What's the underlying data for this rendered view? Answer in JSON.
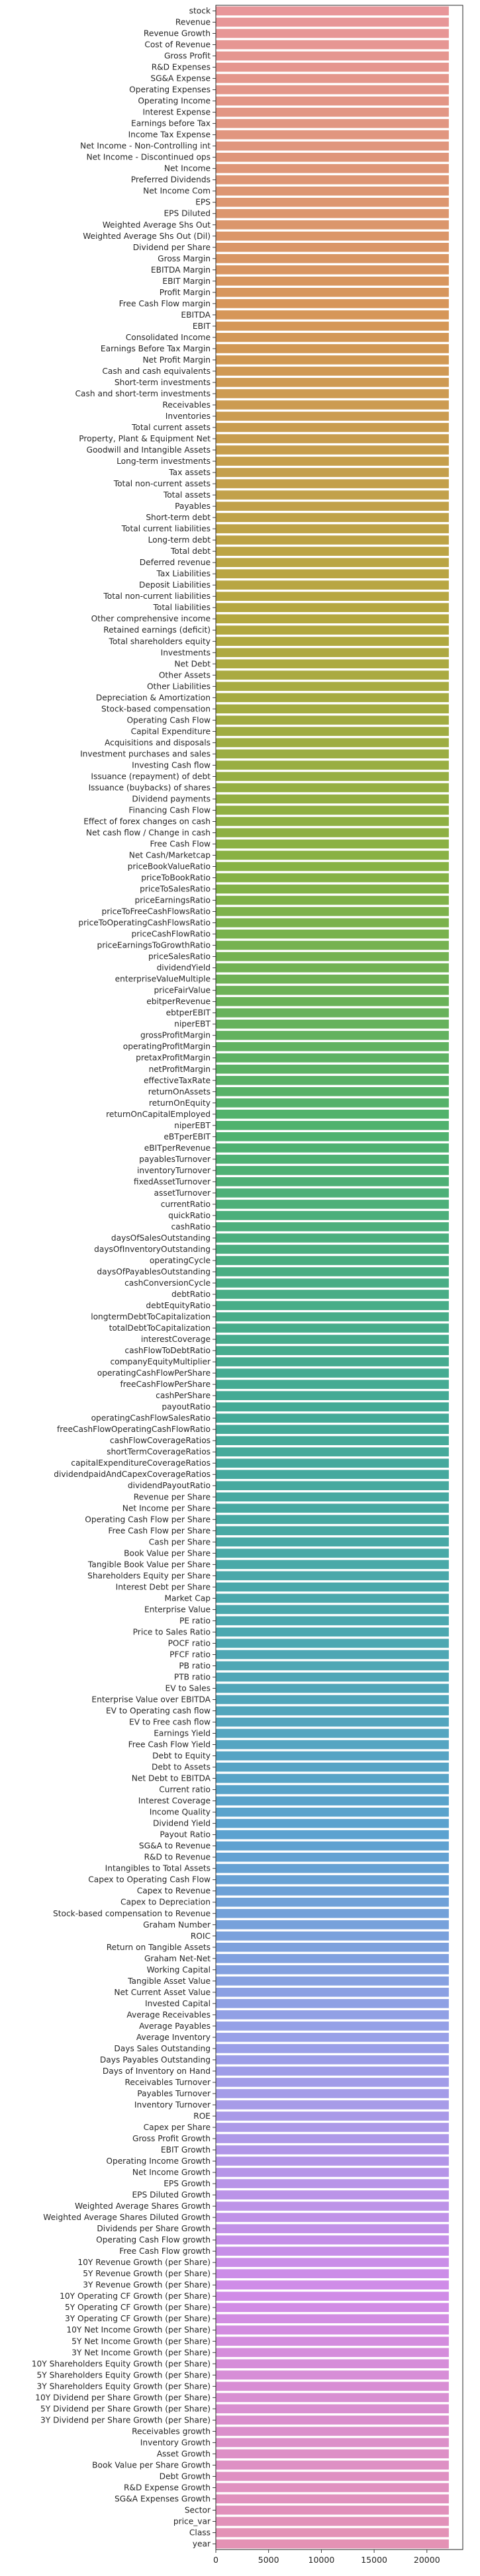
{
  "chart_data": {
    "type": "bar",
    "orientation": "horizontal",
    "title": "",
    "xlabel": "",
    "ylabel": "",
    "xlim": [
      0,
      23400
    ],
    "xticks": [
      0,
      5000,
      10000,
      15000,
      20000
    ],
    "xtick_labels": [
      "0",
      "5000",
      "10000",
      "15000",
      "20000"
    ],
    "grid": false,
    "legend": "none",
    "categories": [
      "stock",
      "Revenue",
      "Revenue Growth",
      "Cost of Revenue",
      "Gross Profit",
      "R&D Expenses",
      "SG&A Expense",
      "Operating Expenses",
      "Operating Income",
      "Interest Expense",
      "Earnings before Tax",
      "Income Tax Expense",
      "Net Income - Non-Controlling int",
      "Net Income - Discontinued ops",
      "Net Income",
      "Preferred Dividends",
      "Net Income Com",
      "EPS",
      "EPS Diluted",
      "Weighted Average Shs Out",
      "Weighted Average Shs Out (Dil)",
      "Dividend per Share",
      "Gross Margin",
      "EBITDA Margin",
      "EBIT Margin",
      "Profit Margin",
      "Free Cash Flow margin",
      "EBITDA",
      "EBIT",
      "Consolidated Income",
      "Earnings Before Tax Margin",
      "Net Profit Margin",
      "Cash and cash equivalents",
      "Short-term investments",
      "Cash and short-term investments",
      "Receivables",
      "Inventories",
      "Total current assets",
      "Property, Plant & Equipment Net",
      "Goodwill and Intangible Assets",
      "Long-term investments",
      "Tax assets",
      "Total non-current assets",
      "Total assets",
      "Payables",
      "Short-term debt",
      "Total current liabilities",
      "Long-term debt",
      "Total debt",
      "Deferred revenue",
      "Tax Liabilities",
      "Deposit Liabilities",
      "Total non-current liabilities",
      "Total liabilities",
      "Other comprehensive income",
      "Retained earnings (deficit)",
      "Total shareholders equity",
      "Investments",
      "Net Debt",
      "Other Assets",
      "Other Liabilities",
      "Depreciation & Amortization",
      "Stock-based compensation",
      "Operating Cash Flow",
      "Capital Expenditure",
      "Acquisitions and disposals",
      "Investment purchases and sales",
      "Investing Cash flow",
      "Issuance (repayment) of debt",
      "Issuance (buybacks) of shares",
      "Dividend payments",
      "Financing Cash Flow",
      "Effect of forex changes on cash",
      "Net cash flow / Change in cash",
      "Free Cash Flow",
      "Net Cash/Marketcap",
      "priceBookValueRatio",
      "priceToBookRatio",
      "priceToSalesRatio",
      "priceEarningsRatio",
      "priceToFreeCashFlowsRatio",
      "priceToOperatingCashFlowsRatio",
      "priceCashFlowRatio",
      "priceEarningsToGrowthRatio",
      "priceSalesRatio",
      "dividendYield",
      "enterpriseValueMultiple",
      "priceFairValue",
      "ebitperRevenue",
      "ebtperEBIT",
      "niperEBT",
      "grossProfitMargin",
      "operatingProfitMargin",
      "pretaxProfitMargin",
      "netProfitMargin",
      "effectiveTaxRate",
      "returnOnAssets",
      "returnOnEquity",
      "returnOnCapitalEmployed",
      "niperEBT",
      "eBTperEBIT",
      "eBITperRevenue",
      "payablesTurnover",
      "inventoryTurnover",
      "fixedAssetTurnover",
      "assetTurnover",
      "currentRatio",
      "quickRatio",
      "cashRatio",
      "daysOfSalesOutstanding",
      "daysOfInventoryOutstanding",
      "operatingCycle",
      "daysOfPayablesOutstanding",
      "cashConversionCycle",
      "debtRatio",
      "debtEquityRatio",
      "longtermDebtToCapitalization",
      "totalDebtToCapitalization",
      "interestCoverage",
      "cashFlowToDebtRatio",
      "companyEquityMultiplier",
      "operatingCashFlowPerShare",
      "freeCashFlowPerShare",
      "cashPerShare",
      "payoutRatio",
      "operatingCashFlowSalesRatio",
      "freeCashFlowOperatingCashFlowRatio",
      "cashFlowCoverageRatios",
      "shortTermCoverageRatios",
      "capitalExpenditureCoverageRatios",
      "dividendpaidAndCapexCoverageRatios",
      "dividendPayoutRatio",
      "Revenue per Share",
      "Net Income per Share",
      "Operating Cash Flow per Share",
      "Free Cash Flow per Share",
      "Cash per Share",
      "Book Value per Share",
      "Tangible Book Value per Share",
      "Shareholders Equity per Share",
      "Interest Debt per Share",
      "Market Cap",
      "Enterprise Value",
      "PE ratio",
      "Price to Sales Ratio",
      "POCF ratio",
      "PFCF ratio",
      "PB ratio",
      "PTB ratio",
      "EV to Sales",
      "Enterprise Value over EBITDA",
      "EV to Operating cash flow",
      "EV to Free cash flow",
      "Earnings Yield",
      "Free Cash Flow Yield",
      "Debt to Equity",
      "Debt to Assets",
      "Net Debt to EBITDA",
      "Current ratio",
      "Interest Coverage",
      "Income Quality",
      "Dividend Yield",
      "Payout Ratio",
      "SG&A to Revenue",
      "R&D to Revenue",
      "Intangibles to Total Assets",
      "Capex to Operating Cash Flow",
      "Capex to Revenue",
      "Capex to Depreciation",
      "Stock-based compensation to Revenue",
      "Graham Number",
      "ROIC",
      "Return on Tangible Assets",
      "Graham Net-Net",
      "Working Capital",
      "Tangible Asset Value",
      "Net Current Asset Value",
      "Invested Capital",
      "Average Receivables",
      "Average Payables",
      "Average Inventory",
      "Days Sales Outstanding",
      "Days Payables Outstanding",
      "Days of Inventory on Hand",
      "Receivables Turnover",
      "Payables Turnover",
      "Inventory Turnover",
      "ROE",
      "Capex per Share",
      "Gross Profit Growth",
      "EBIT Growth",
      "Operating Income Growth",
      "Net Income Growth",
      "EPS Growth",
      "EPS Diluted Growth",
      "Weighted Average Shares Growth",
      "Weighted Average Shares Diluted Growth",
      "Dividends per Share Growth",
      "Operating Cash Flow growth",
      "Free Cash Flow growth",
      "10Y Revenue Growth (per Share)",
      "5Y Revenue Growth (per Share)",
      "3Y Revenue Growth (per Share)",
      "10Y Operating CF Growth (per Share)",
      "5Y Operating CF Growth (per Share)",
      "3Y Operating CF Growth (per Share)",
      "10Y Net Income Growth (per Share)",
      "5Y Net Income Growth (per Share)",
      "3Y Net Income Growth (per Share)",
      "10Y Shareholders Equity Growth (per Share)",
      "5Y Shareholders Equity Growth (per Share)",
      "3Y Shareholders Equity Growth (per Share)",
      "10Y Dividend per Share Growth (per Share)",
      "5Y Dividend per Share Growth (per Share)",
      "3Y Dividend per Share Growth (per Share)",
      "Receivables growth",
      "Inventory Growth",
      "Asset Growth",
      "Book Value per Share Growth",
      "Debt Growth",
      "R&D Expense Growth",
      "SG&A Expenses Growth",
      "Sector",
      "price_var",
      "Class",
      "year"
    ],
    "value": 22077,
    "palette": "husl"
  }
}
